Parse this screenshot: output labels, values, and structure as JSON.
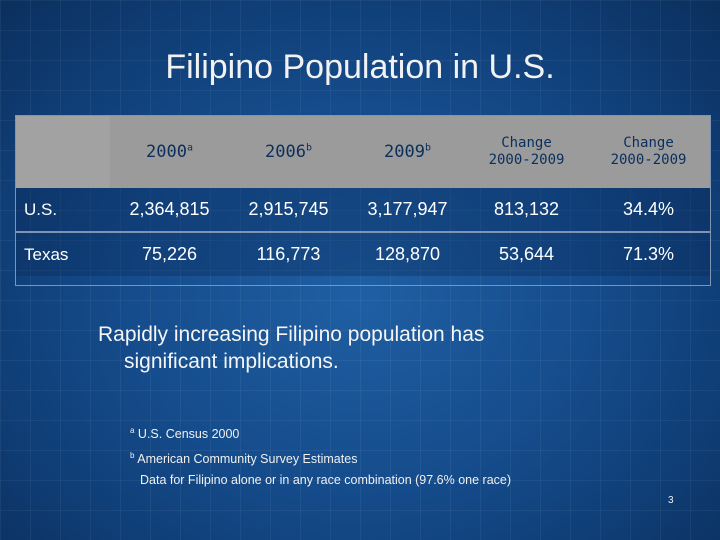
{
  "slide": {
    "title": "Filipino Population in U.S.",
    "page_number": "3"
  },
  "table": {
    "headers": [
      {
        "label": "2000",
        "sup": "a"
      },
      {
        "label": "2006",
        "sup": "b"
      },
      {
        "label": "2009",
        "sup": "b"
      },
      {
        "line1": "Change",
        "line2": "2000-2009"
      },
      {
        "line1": "Change",
        "line2": "2000-2009"
      }
    ],
    "rows": [
      {
        "label": "U.S.",
        "values": [
          "2,364,815",
          "2,915,745",
          "3,177,947",
          "813,132",
          "34.4%"
        ]
      },
      {
        "label": "Texas",
        "values": [
          "75,226",
          "116,773",
          "128,870",
          "53,644",
          "71.3%"
        ]
      }
    ]
  },
  "statement": {
    "line1": "Rapidly increasing Filipino population has",
    "line2": "significant implications."
  },
  "notes": [
    {
      "sup": "a",
      "text": " U.S. Census 2000"
    },
    {
      "sup": "b",
      "text": " American Community Survey Estimates"
    },
    {
      "sup": "",
      "text": "Data for Filipino alone or in any race combination (97.6% one race)"
    }
  ]
}
